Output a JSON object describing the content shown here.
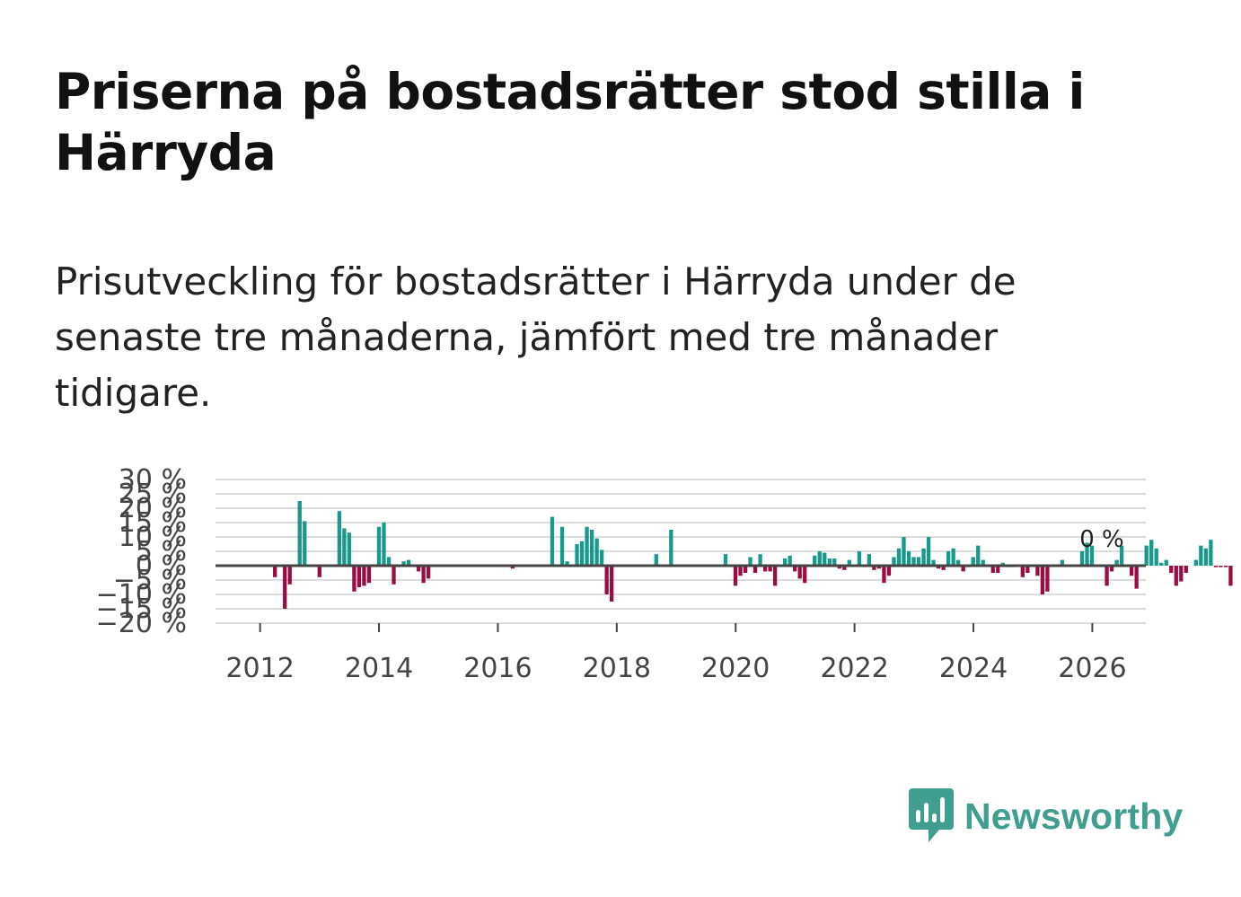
{
  "title": "Priserna på bostadsrätter stod stilla i Härryda",
  "subtitle": "Prisutveckling för bostadsrätter i Härryda under de senaste tre månaderna, jämfört med tre månader tidigare.",
  "brand": {
    "name": "Newsworthy",
    "logo_icon": "newsworthy-bar-chart-icon",
    "color": "#3f9e8f"
  },
  "colors": {
    "positive": "#17998b",
    "negative": "#9c0c44",
    "zero_line": "#444444",
    "grid": "#dddddd"
  },
  "chart_data": {
    "type": "bar",
    "title": "",
    "xlabel": "",
    "ylabel": "",
    "x_start": 2011.5,
    "x_step": 0.0833,
    "xlim": [
      2011.25,
      2026.9
    ],
    "ylim": [
      -20,
      30
    ],
    "ytick_values": [
      -20,
      -15,
      -10,
      -5,
      0,
      5,
      10,
      15,
      20,
      25,
      30
    ],
    "ytick_labels": [
      "−20 %",
      "−15 %",
      "−10 %",
      "−5 %",
      "0 %",
      "5 %",
      "10 %",
      "15 %",
      "20 %",
      "25 %",
      "30 %"
    ],
    "xtick_values": [
      2012,
      2014,
      2016,
      2018,
      2020,
      2022,
      2024,
      2026
    ],
    "xtick_labels": [
      "2012",
      "2014",
      "2016",
      "2018",
      "2020",
      "2022",
      "2024",
      "2026"
    ],
    "end_label": "0 %",
    "values": [
      0,
      0,
      0,
      0,
      0,
      0,
      0,
      0,
      0,
      -4,
      0,
      -15,
      -6.5,
      0,
      22.5,
      15.5,
      0,
      0,
      -4,
      0,
      0,
      0,
      19,
      13,
      11.5,
      -9,
      -7.5,
      -7,
      -6,
      0.5,
      13.5,
      15,
      3,
      -6.5,
      -0.5,
      1.5,
      2,
      0,
      -2,
      -6,
      -4.5,
      0,
      0,
      0,
      0,
      0,
      0,
      0,
      0,
      0,
      0,
      0,
      0,
      0,
      0,
      0,
      0,
      -1,
      0,
      0,
      0,
      0,
      0,
      0,
      0,
      17,
      0,
      13.5,
      1.5,
      0,
      7.5,
      8.5,
      13.5,
      12.5,
      9.5,
      5.5,
      -10,
      -12.5,
      0,
      0,
      0,
      0,
      0,
      0,
      0,
      0,
      4,
      0,
      0,
      12.5,
      0,
      0,
      0,
      0,
      0,
      0,
      0,
      0,
      0,
      0,
      4,
      0,
      -7,
      -3.5,
      -2.5,
      3,
      -2.5,
      4,
      -2,
      -2,
      -7,
      0,
      2.5,
      3.5,
      -2,
      -4.5,
      -6,
      0,
      3.5,
      5,
      4.5,
      2.5,
      2.5,
      -1,
      -1.5,
      2,
      0,
      5,
      -0.5,
      4,
      -1.5,
      -1,
      -6,
      -3.5,
      3,
      6,
      10,
      5,
      3,
      3,
      6,
      10,
      2,
      -1,
      -1.5,
      5,
      6,
      2,
      -2,
      -0.5,
      3,
      7,
      2,
      0,
      -2.5,
      -2.5,
      1,
      -0.5,
      -0.5,
      0,
      -4,
      -2.5,
      0,
      -3.5,
      -10,
      -9,
      0,
      0,
      2,
      0,
      0,
      0,
      5,
      8,
      7,
      0,
      0,
      -7,
      -2,
      2,
      7,
      0,
      -3.5,
      -8,
      0.5,
      7,
      9,
      6,
      1,
      2,
      -2.5,
      -7,
      -5.5,
      -2.5,
      0,
      2,
      7,
      6,
      9,
      -0.5,
      -0.5,
      -0.5,
      -7,
      0,
      0,
      -2,
      -4
    ]
  }
}
